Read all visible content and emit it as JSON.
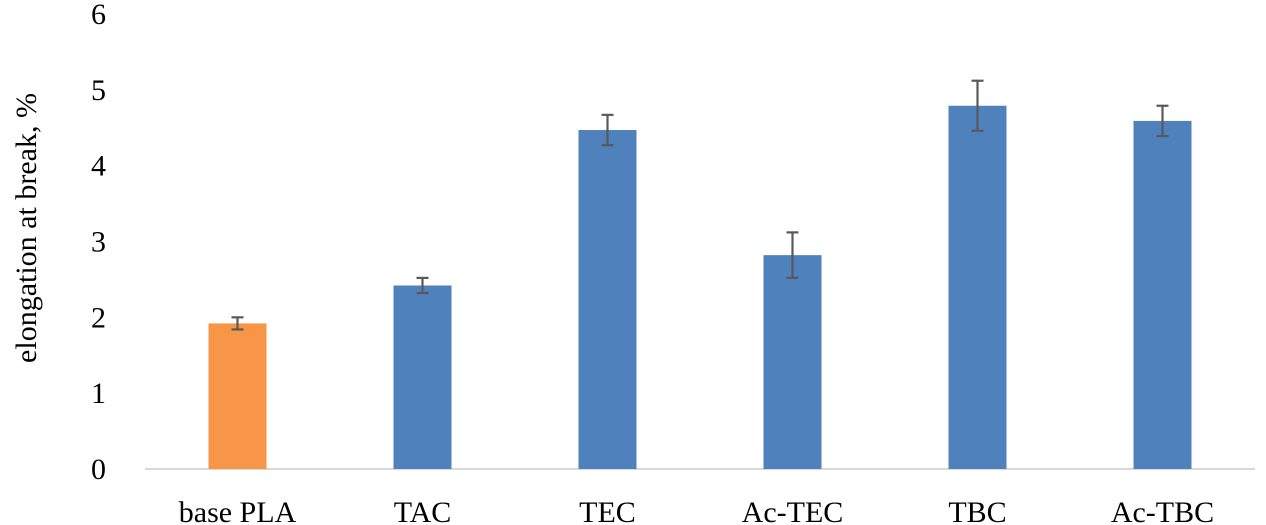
{
  "chart_data": {
    "type": "bar",
    "title": "",
    "xlabel": "",
    "ylabel": "elongation at break, %",
    "ylim": [
      0,
      6
    ],
    "yticks": [
      0,
      1,
      2,
      3,
      4,
      5,
      6
    ],
    "grid": false,
    "legend": "none",
    "categories": [
      "base PLA",
      "TAC",
      "TEC",
      "Ac-TEC",
      "TBC",
      "Ac-TBC"
    ],
    "values": [
      1.92,
      2.42,
      4.47,
      2.82,
      4.79,
      4.59
    ],
    "errors": [
      0.08,
      0.1,
      0.2,
      0.3,
      0.33,
      0.2
    ],
    "colors": [
      "#F79646",
      "#4F81BD",
      "#4F81BD",
      "#4F81BD",
      "#4F81BD",
      "#4F81BD"
    ],
    "axis_color": "#D9D9D9",
    "error_bar_color": "#595959"
  }
}
